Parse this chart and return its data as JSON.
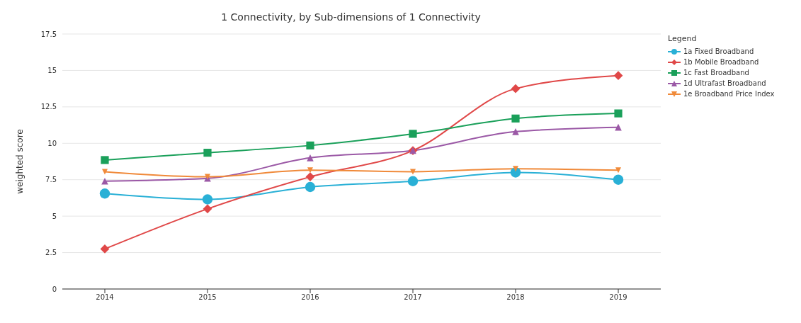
{
  "chart_data": {
    "type": "line",
    "title": "1 Connectivity, by Sub-dimensions of 1 Connectivity",
    "ylabel": "weighted score",
    "legend_title": "Legend",
    "categories": [
      "2014",
      "2015",
      "2016",
      "2017",
      "2018",
      "2019"
    ],
    "series": [
      {
        "name": "1a Fixed Broadband",
        "color": "#29b0d6",
        "marker": "circle",
        "values": [
          6.55,
          6.15,
          7.0,
          7.4,
          8.0,
          7.5
        ]
      },
      {
        "name": "1b Mobile Broadband",
        "color": "#e04848",
        "marker": "diamond",
        "values": [
          2.75,
          5.5,
          7.7,
          9.5,
          13.75,
          14.65
        ]
      },
      {
        "name": "1c Fast Broadband",
        "color": "#1aa05a",
        "marker": "square",
        "values": [
          8.85,
          9.35,
          9.85,
          10.65,
          11.7,
          12.05
        ]
      },
      {
        "name": "1d Ultrafast Broadband",
        "color": "#9b59a6",
        "marker": "triangle",
        "values": [
          7.4,
          7.6,
          9.0,
          9.5,
          10.8,
          11.1
        ]
      },
      {
        "name": "1e Broadband Price Index",
        "color": "#f08a3a",
        "marker": "triangle-down",
        "values": [
          8.05,
          7.7,
          8.15,
          8.05,
          8.25,
          8.15
        ]
      }
    ],
    "ylim": [
      0,
      17.5
    ],
    "yticks": [
      0,
      2.5,
      5,
      7.5,
      10,
      12.5,
      15,
      17.5
    ],
    "grid": "y",
    "legend": "top right",
    "line_style": "solid"
  }
}
